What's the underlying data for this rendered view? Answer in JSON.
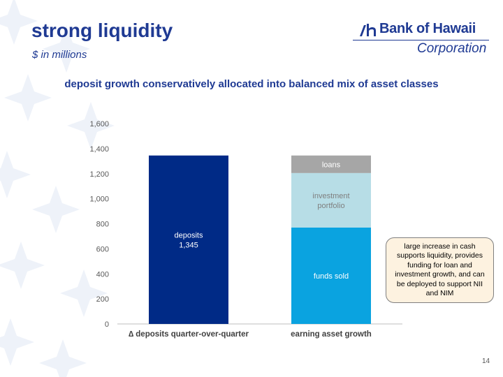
{
  "title": "strong liquidity",
  "subtitle": "$ in millions",
  "logo": {
    "name": "Bank of Hawaii",
    "sub": "Corporation"
  },
  "headline": "deposit growth conservatively allocated into balanced mix of asset classes",
  "callout": "large increase in cash supports liquidity, provides funding for loan and investment growth, and can be deployed to support NII and NIM",
  "page_number": "14",
  "colors": {
    "title": "#1f3a93",
    "deposits": "#002a86",
    "funds_sold": "#0aa3e0",
    "investment_portfolio": "#b7dde6",
    "loans": "#a6a6a6",
    "callout_fill": "#fdf2e0"
  },
  "chart_data": {
    "type": "bar",
    "stacked": true,
    "categories": [
      "∆ deposits quarter-over-quarter",
      "earning asset growth"
    ],
    "ylim": [
      0,
      1600
    ],
    "yticks": [
      "0",
      "200",
      "400",
      "600",
      "800",
      "1,000",
      "1,200",
      "1,400",
      "1,600"
    ],
    "grid": false,
    "series": [
      {
        "name": "deposits",
        "label": "deposits\n1,345",
        "values": [
          1345,
          0
        ],
        "color": "#002a86"
      },
      {
        "name": "funds sold",
        "label": "funds sold",
        "values": [
          0,
          770
        ],
        "color": "#0aa3e0"
      },
      {
        "name": "investment portfolio",
        "label": "investment\nportfolio",
        "values": [
          0,
          435
        ],
        "color": "#b7dde6"
      },
      {
        "name": "loans",
        "label": "loans",
        "values": [
          0,
          140
        ],
        "color": "#a6a6a6"
      }
    ]
  }
}
